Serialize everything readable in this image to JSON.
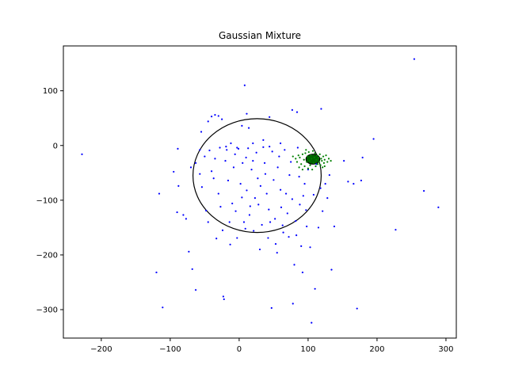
{
  "chart_data": {
    "type": "scatter",
    "title": "Gaussian Mixture",
    "xlabel": "",
    "ylabel": "",
    "xlim": [
      -255,
      315
    ],
    "ylim": [
      -352,
      182
    ],
    "xticks": [
      -200,
      -100,
      0,
      100,
      200,
      300
    ],
    "yticks": [
      100,
      0,
      -100,
      -200,
      -300
    ],
    "xtick_labels": [
      "−200",
      "−100",
      "0",
      "100",
      "200",
      "300"
    ],
    "ytick_labels": [
      "100",
      "0",
      "−100",
      "−200",
      "−300"
    ],
    "grid": false,
    "colors": {
      "series_blue": "#0000ff",
      "series_green": "#008000",
      "ellipse": "#000000",
      "axes": "#000000"
    },
    "series": [
      {
        "color": "#0000ff",
        "points": [
          [
            -228,
            -16
          ],
          [
            -116,
            -88
          ],
          [
            -111,
            -296
          ],
          [
            -120,
            -232
          ],
          [
            -95,
            -48
          ],
          [
            -89,
            -6
          ],
          [
            -88,
            -74
          ],
          [
            -90,
            -122
          ],
          [
            -81,
            -127
          ],
          [
            -77,
            -134
          ],
          [
            -73,
            -194
          ],
          [
            -68,
            -226
          ],
          [
            -63,
            -264
          ],
          [
            -57,
            -52
          ],
          [
            -54,
            -76
          ],
          [
            -48,
            -119
          ],
          [
            -45,
            -140
          ],
          [
            -43,
            -9
          ],
          [
            -40,
            -47
          ],
          [
            -37,
            -60
          ],
          [
            -35,
            -24
          ],
          [
            -33,
            -170
          ],
          [
            -30,
            -88
          ],
          [
            -27,
            -112
          ],
          [
            -24,
            -155
          ],
          [
            -23,
            -276
          ],
          [
            -22,
            -281
          ],
          [
            -20,
            -28
          ],
          [
            -18,
            -8
          ],
          [
            -16,
            -64
          ],
          [
            -14,
            -140
          ],
          [
            -13,
            -181
          ],
          [
            -10,
            -106
          ],
          [
            -8,
            -40
          ],
          [
            -6,
            -16
          ],
          [
            -5,
            -120
          ],
          [
            -3,
            -169
          ],
          [
            -1,
            -6
          ],
          [
            2,
            -70
          ],
          [
            4,
            -95
          ],
          [
            5,
            -32
          ],
          [
            7,
            -140
          ],
          [
            9,
            -152
          ],
          [
            10,
            -22
          ],
          [
            11,
            -82
          ],
          [
            13,
            -5
          ],
          [
            15,
            -127
          ],
          [
            16,
            -111
          ],
          [
            18,
            -44
          ],
          [
            20,
            -28
          ],
          [
            21,
            -156
          ],
          [
            23,
            -96
          ],
          [
            25,
            -13
          ],
          [
            27,
            -60
          ],
          [
            28,
            -108
          ],
          [
            30,
            -190
          ],
          [
            31,
            -74
          ],
          [
            33,
            -145
          ],
          [
            35,
            -3
          ],
          [
            37,
            -32
          ],
          [
            38,
            -52
          ],
          [
            40,
            -88
          ],
          [
            42,
            -169
          ],
          [
            43,
            -117
          ],
          [
            45,
            -140
          ],
          [
            47,
            -297
          ],
          [
            48,
            -11
          ],
          [
            50,
            -63
          ],
          [
            52,
            -134
          ],
          [
            53,
            -180
          ],
          [
            55,
            -196
          ],
          [
            56,
            -40
          ],
          [
            58,
            -20
          ],
          [
            60,
            -81
          ],
          [
            61,
            -113
          ],
          [
            63,
            -146
          ],
          [
            64,
            -159
          ],
          [
            66,
            -8
          ],
          [
            68,
            -88
          ],
          [
            70,
            -124
          ],
          [
            72,
            -167
          ],
          [
            73,
            -54
          ],
          [
            75,
            -30
          ],
          [
            77,
            -98
          ],
          [
            78,
            -289
          ],
          [
            80,
            -218
          ],
          [
            82,
            -138
          ],
          [
            83,
            -164
          ],
          [
            85,
            -4
          ],
          [
            87,
            -57
          ],
          [
            88,
            -108
          ],
          [
            90,
            -184
          ],
          [
            92,
            -232
          ],
          [
            93,
            -92
          ],
          [
            95,
            -70
          ],
          [
            97,
            -118
          ],
          [
            98,
            -148
          ],
          [
            100,
            -44
          ],
          [
            103,
            -186
          ],
          [
            105,
            -324
          ],
          [
            108,
            -90
          ],
          [
            110,
            -262
          ],
          [
            112,
            -34
          ],
          [
            115,
            -150
          ],
          [
            118,
            -78
          ],
          [
            121,
            -120
          ],
          [
            125,
            -70
          ],
          [
            128,
            -96
          ],
          [
            131,
            -54
          ],
          [
            134,
            -227
          ],
          [
            138,
            -148
          ],
          [
            152,
            -28
          ],
          [
            158,
            -66
          ],
          [
            166,
            -70
          ],
          [
            171,
            -298
          ],
          [
            177,
            -64
          ],
          [
            179,
            -22
          ],
          [
            195,
            12
          ],
          [
            227,
            -154
          ],
          [
            254,
            158
          ],
          [
            268,
            -83
          ],
          [
            289,
            -113
          ],
          [
            8,
            110
          ],
          [
            11,
            58
          ],
          [
            44,
            52
          ],
          [
            77,
            65
          ],
          [
            84,
            61
          ],
          [
            119,
            67
          ],
          [
            -30,
            54
          ],
          [
            -35,
            56
          ],
          [
            -40,
            53
          ],
          [
            -25,
            48
          ],
          [
            -45,
            44
          ],
          [
            -55,
            25
          ],
          [
            4,
            36
          ],
          [
            14,
            32
          ],
          [
            -19,
            -2
          ],
          [
            -12,
            4
          ],
          [
            -28,
            -4
          ],
          [
            -3,
            -4
          ],
          [
            20,
            4
          ],
          [
            35,
            10
          ],
          [
            44,
            -2
          ],
          [
            60,
            4
          ],
          [
            -50,
            -20
          ],
          [
            -57,
            -8
          ],
          [
            -63,
            -32
          ],
          [
            -70,
            -40
          ]
        ]
      },
      {
        "color": "#008000",
        "points": [
          [
            78,
            -20
          ],
          [
            82,
            -24
          ],
          [
            84,
            -30
          ],
          [
            86,
            -18
          ],
          [
            88,
            -22
          ],
          [
            90,
            -34
          ],
          [
            92,
            -16
          ],
          [
            94,
            -26
          ],
          [
            95,
            -38
          ],
          [
            96,
            -14
          ],
          [
            98,
            -30
          ],
          [
            99,
            -20
          ],
          [
            100,
            -42
          ],
          [
            101,
            -12
          ],
          [
            102,
            -28
          ],
          [
            103,
            -36
          ],
          [
            104,
            -18
          ],
          [
            105,
            -24
          ],
          [
            106,
            -44
          ],
          [
            107,
            -10
          ],
          [
            108,
            -32
          ],
          [
            109,
            -22
          ],
          [
            110,
            -14
          ],
          [
            111,
            -38
          ],
          [
            112,
            -26
          ],
          [
            113,
            -18
          ],
          [
            114,
            -34
          ],
          [
            115,
            -22
          ],
          [
            116,
            -30
          ],
          [
            117,
            -16
          ],
          [
            118,
            -36
          ],
          [
            119,
            -24
          ],
          [
            120,
            -28
          ],
          [
            122,
            -20
          ],
          [
            123,
            -32
          ],
          [
            124,
            -26
          ],
          [
            126,
            -18
          ],
          [
            128,
            -30
          ],
          [
            130,
            -24
          ],
          [
            133,
            -28
          ],
          [
            92,
            -44
          ],
          [
            97,
            -8
          ],
          [
            121,
            -40
          ],
          [
            87,
            -40
          ],
          [
            124,
            -38
          ]
        ]
      }
    ],
    "ellipses": [
      {
        "cx": 26,
        "cy": -55,
        "rx": 93,
        "ry": 104,
        "fill": "none",
        "stroke": "#000000"
      },
      {
        "cx": 107,
        "cy": -25,
        "rx": 10,
        "ry": 9,
        "fill": "#006400",
        "stroke": "#000000"
      }
    ]
  }
}
